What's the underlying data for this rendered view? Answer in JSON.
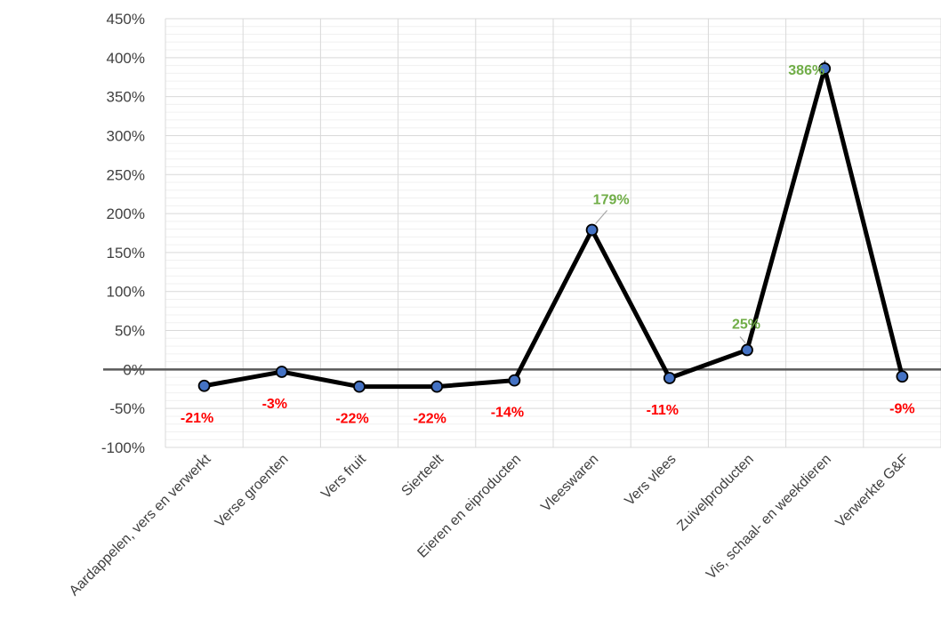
{
  "chart_data": {
    "type": "line",
    "categories": [
      "Aardappelen, vers en verwerkt",
      "Verse groenten",
      "Vers fruit",
      "Sierteelt",
      "Eieren en eiproducten",
      "Vleeswaren",
      "Vers vlees",
      "Zuivelproducten",
      "Vis, schaal- en weekdieren",
      "Verwerkte G&F"
    ],
    "series": [
      {
        "values": [
          -21,
          -3,
          -22,
          -22,
          -14,
          179,
          -11,
          25,
          386,
          -9
        ],
        "data_labels": [
          "-21%",
          "-3%",
          "-22%",
          "-22%",
          "-14%",
          "179%",
          "-11%",
          "25%",
          "386%",
          "-9%"
        ]
      }
    ],
    "y_tick_labels": [
      "-100%",
      "-50%",
      "0%",
      "50%",
      "100%",
      "150%",
      "200%",
      "250%",
      "300%",
      "350%",
      "400%",
      "450%"
    ],
    "ylim": [
      -100,
      450
    ],
    "y_unit": "%",
    "grid": true,
    "legend": "none",
    "colors": {
      "line": "#000000",
      "marker_fill": "#4472C4",
      "marker_stroke": "#000000",
      "positive_label": "#70AD47",
      "negative_label": "#FF0000",
      "zero_line": "#595959",
      "grid_major": "#d9d9d9",
      "grid_minor": "#f0f0f0"
    }
  }
}
